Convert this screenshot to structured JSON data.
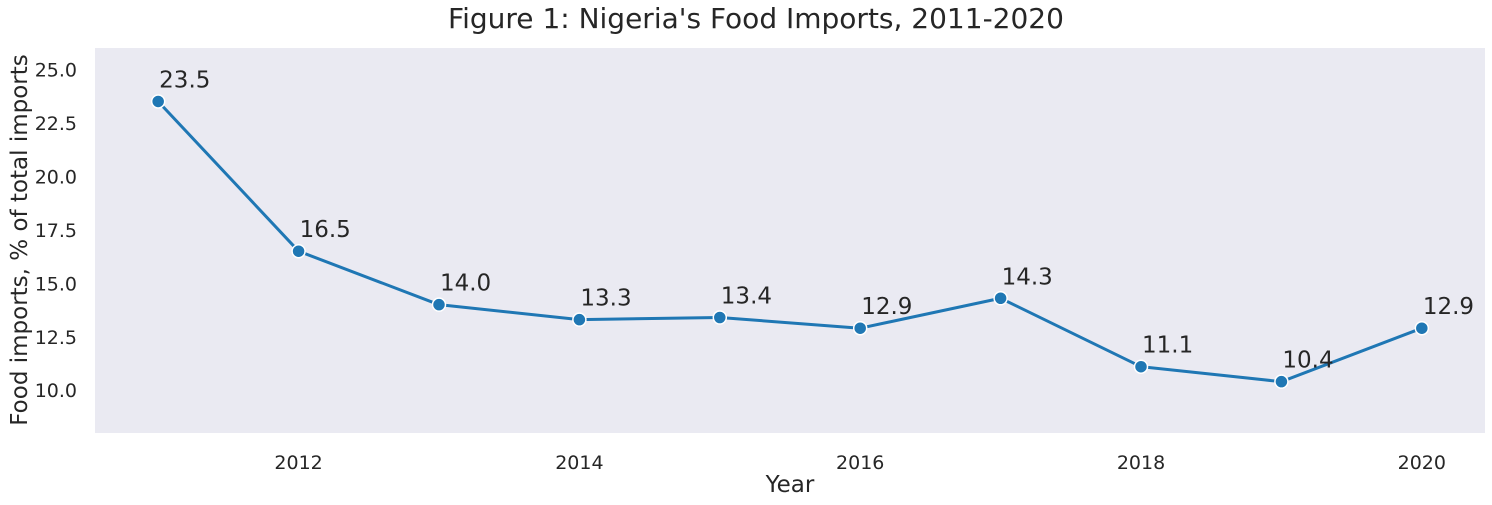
{
  "chart_data": {
    "type": "line",
    "title": "Figure 1: Nigeria's Food Imports, 2011-2020",
    "xlabel": "Year",
    "ylabel": "Food imports, % of total imports",
    "x": [
      2011,
      2012,
      2013,
      2014,
      2015,
      2016,
      2017,
      2018,
      2019,
      2020
    ],
    "values": [
      23.5,
      16.5,
      14.0,
      13.3,
      13.4,
      12.9,
      14.3,
      11.1,
      10.4,
      12.9
    ],
    "data_labels": [
      "23.5",
      "16.5",
      "14.0",
      "13.3",
      "13.4",
      "12.9",
      "14.3",
      "11.1",
      "10.4",
      "12.9"
    ],
    "xticks": [
      "2012",
      "2014",
      "2016",
      "2018",
      "2020"
    ],
    "xtick_values": [
      2012,
      2014,
      2016,
      2018,
      2020
    ],
    "yticks": [
      "10.0",
      "12.5",
      "15.0",
      "17.5",
      "20.0",
      "22.5",
      "25.0"
    ],
    "ytick_values": [
      10,
      12.5,
      15,
      17.5,
      20,
      22.5,
      25
    ],
    "xlim": [
      2010.55,
      2020.45
    ],
    "ylim": [
      8.0,
      26.0
    ],
    "grid": false,
    "background": "#eaeaf2",
    "line_color": "#1f77b4"
  }
}
